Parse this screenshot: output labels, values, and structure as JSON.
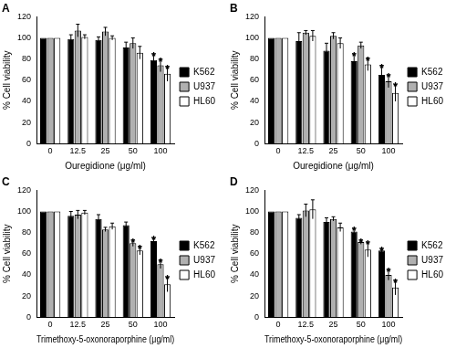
{
  "chart_data": [
    {
      "type": "bar",
      "title": "A",
      "x_label": "Ouregidione (μg/ml)",
      "y_label": "% Cell viability",
      "categories": [
        "0",
        "12.5",
        "25",
        "50",
        "100"
      ],
      "ylim": [
        0,
        120
      ],
      "yticks": [
        0,
        20,
        40,
        60,
        80,
        100,
        120
      ],
      "grid": false,
      "legend": "right",
      "significance_mark": "*",
      "series": [
        {
          "name": "K562",
          "color": "#000000",
          "values": [
            100,
            99,
            98,
            91,
            79
          ],
          "errors": [
            0,
            4,
            3,
            5,
            6
          ],
          "significant": [
            false,
            false,
            false,
            false,
            true
          ]
        },
        {
          "name": "U937",
          "color": "#b0b0b0",
          "values": [
            100,
            107,
            106,
            95,
            74
          ],
          "errors": [
            0,
            6,
            4,
            5,
            6
          ],
          "significant": [
            false,
            false,
            false,
            false,
            true
          ]
        },
        {
          "name": "HL60",
          "color": "#ffffff",
          "values": [
            100,
            101,
            100,
            86,
            66
          ],
          "errors": [
            0,
            2,
            2,
            6,
            7
          ],
          "significant": [
            false,
            false,
            false,
            false,
            true
          ]
        }
      ]
    },
    {
      "type": "bar",
      "title": "B",
      "x_label": "Ouregidione (μg/ml)",
      "y_label": "% Cell viability",
      "categories": [
        "0",
        "12.5",
        "25",
        "50",
        "100"
      ],
      "ylim": [
        0,
        120
      ],
      "yticks": [
        0,
        20,
        40,
        60,
        80,
        100,
        120
      ],
      "grid": false,
      "legend": "right",
      "significance_mark": "*",
      "series": [
        {
          "name": "K562",
          "color": "#000000",
          "values": [
            100,
            97,
            88,
            78,
            65
          ],
          "errors": [
            0,
            8,
            7,
            7,
            9
          ],
          "significant": [
            false,
            false,
            false,
            true,
            true
          ]
        },
        {
          "name": "U937",
          "color": "#b0b0b0",
          "values": [
            100,
            105,
            102,
            93,
            59
          ],
          "errors": [
            0,
            2,
            3,
            3,
            6
          ],
          "significant": [
            false,
            false,
            false,
            false,
            true
          ]
        },
        {
          "name": "HL60",
          "color": "#ffffff",
          "values": [
            100,
            102,
            95,
            75,
            48
          ],
          "errors": [
            0,
            5,
            5,
            6,
            8
          ],
          "significant": [
            false,
            false,
            false,
            true,
            true
          ]
        }
      ]
    },
    {
      "type": "bar",
      "title": "C",
      "x_label": "Trimethoxy-5-oxonoraporphine (μg/ml)",
      "y_label": "% Cell viability",
      "categories": [
        "0",
        "12.5",
        "25",
        "50",
        "100"
      ],
      "ylim": [
        0,
        120
      ],
      "yticks": [
        0,
        20,
        40,
        60,
        80,
        100,
        120
      ],
      "grid": false,
      "legend": "right",
      "significance_mark": "*",
      "series": [
        {
          "name": "K562",
          "color": "#000000",
          "values": [
            100,
            96,
            93,
            87,
            72
          ],
          "errors": [
            0,
            4,
            4,
            3,
            3
          ],
          "significant": [
            false,
            false,
            false,
            false,
            true
          ]
        },
        {
          "name": "U937",
          "color": "#b0b0b0",
          "values": [
            100,
            97,
            83,
            70,
            50
          ],
          "errors": [
            0,
            4,
            2,
            3,
            4
          ],
          "significant": [
            false,
            false,
            false,
            true,
            true
          ]
        },
        {
          "name": "HL60",
          "color": "#ffffff",
          "values": [
            100,
            99,
            86,
            63,
            31
          ],
          "errors": [
            0,
            2,
            3,
            4,
            7
          ],
          "significant": [
            false,
            false,
            false,
            true,
            true
          ]
        }
      ]
    },
    {
      "type": "bar",
      "title": "D",
      "x_label": "Trimethoxy-5-oxonoraporphine (μg/ml)",
      "y_label": "% Cell viability",
      "categories": [
        "0",
        "12.5",
        "25",
        "50",
        "100"
      ],
      "ylim": [
        0,
        120
      ],
      "yticks": [
        0,
        20,
        40,
        60,
        80,
        100,
        120
      ],
      "grid": false,
      "legend": "right",
      "significance_mark": "*",
      "series": [
        {
          "name": "K562",
          "color": "#000000",
          "values": [
            100,
            94,
            90,
            81,
            63
          ],
          "errors": [
            0,
            3,
            4,
            3,
            2
          ],
          "significant": [
            false,
            false,
            false,
            true,
            true
          ]
        },
        {
          "name": "U937",
          "color": "#b0b0b0",
          "values": [
            100,
            101,
            93,
            71,
            40
          ],
          "errors": [
            0,
            6,
            2,
            2,
            5
          ],
          "significant": [
            false,
            false,
            false,
            true,
            true
          ]
        },
        {
          "name": "HL60",
          "color": "#ffffff",
          "values": [
            100,
            102,
            85,
            64,
            28
          ],
          "errors": [
            0,
            9,
            4,
            7,
            7
          ],
          "significant": [
            false,
            false,
            false,
            true,
            true
          ]
        }
      ]
    }
  ]
}
